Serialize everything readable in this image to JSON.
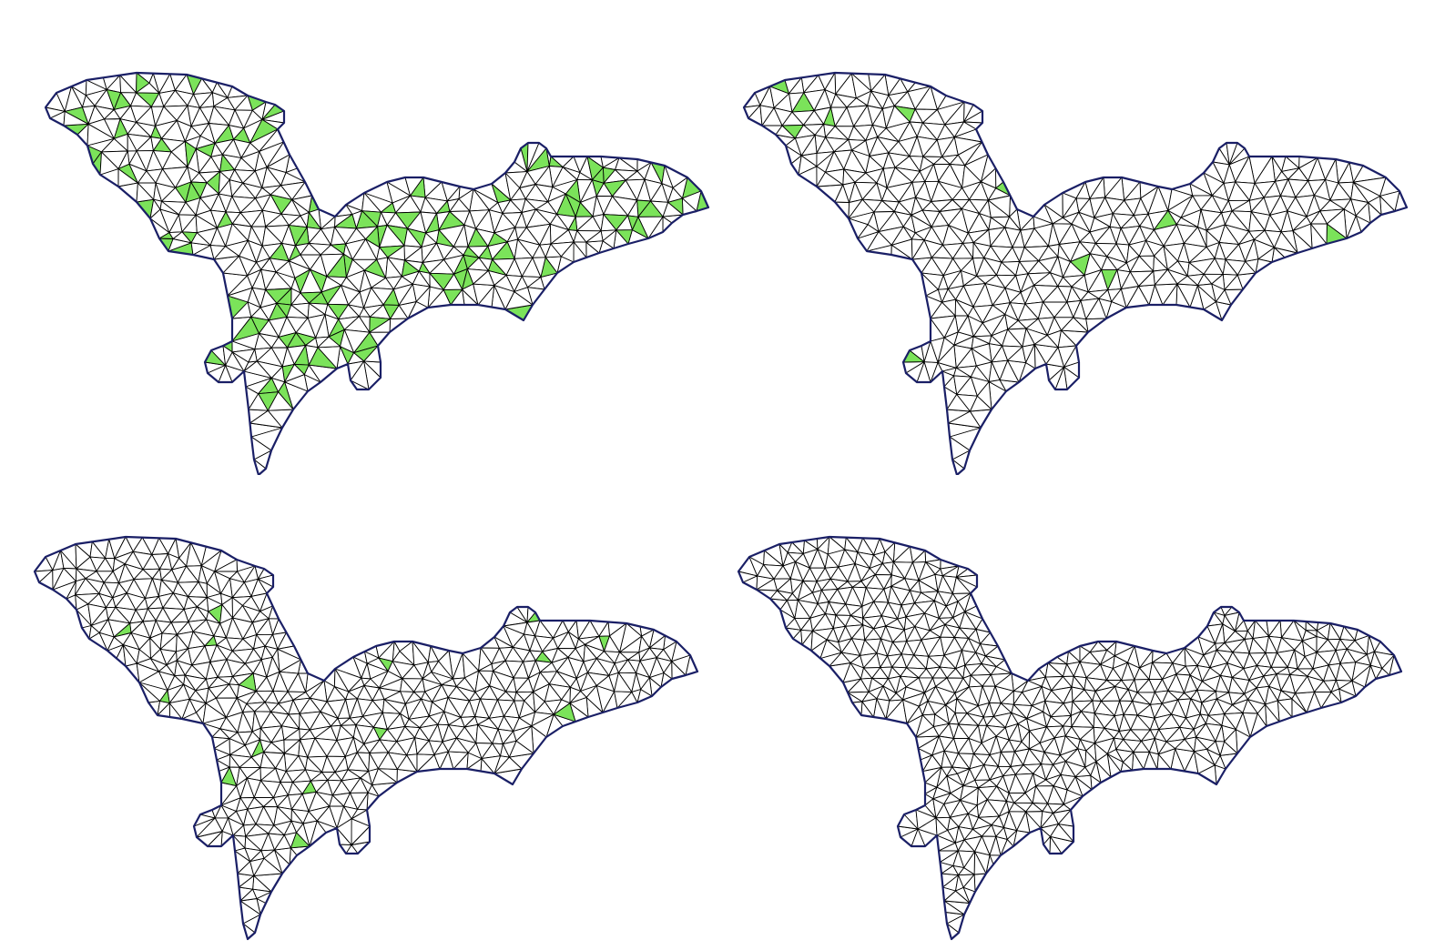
{
  "figure": {
    "panels": [
      {
        "id": "mesh-1",
        "position": "top-left",
        "bad_triangle_fraction": 0.16,
        "mesh_density": 1.0
      },
      {
        "id": "mesh-2",
        "position": "top-right",
        "bad_triangle_fraction": 0.02,
        "mesh_density": 1.0
      },
      {
        "id": "mesh-3",
        "position": "bottom-left",
        "bad_triangle_fraction": 0.015,
        "mesh_density": 1.12
      },
      {
        "id": "mesh-4",
        "position": "bottom-right",
        "bad_triangle_fraction": 0.0,
        "mesh_density": 1.2
      }
    ],
    "colors": {
      "background": "#ffffff",
      "mesh_edge": "#000000",
      "boundary": "#1a1f66",
      "bad_triangle_fill": "#7be35a",
      "good_triangle_fill": "#ffffff"
    }
  }
}
